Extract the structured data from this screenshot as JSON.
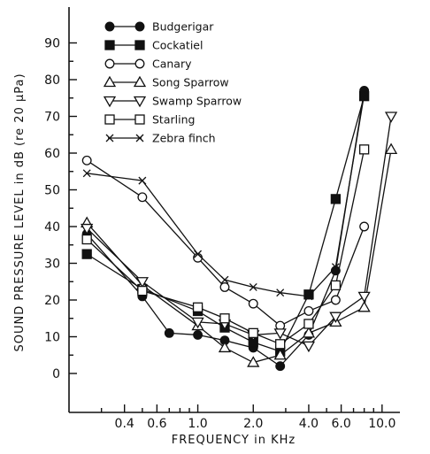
{
  "chart_data": {
    "type": "line",
    "x_scale": "log",
    "xlabel": "FREQUENCY in KHz",
    "ylabel": "SOUND PRESSURE LEVEL in dB (re 20 μPa)",
    "xlim": [
      0.2,
      12.5
    ],
    "ylim": [
      -10,
      100
    ],
    "x_ticks": [
      {
        "value": 0.4,
        "label": "0.4"
      },
      {
        "value": 0.6,
        "label": "0.6"
      },
      {
        "value": 1.0,
        "label": "1.0"
      },
      {
        "value": 2.0,
        "label": "2.0"
      },
      {
        "value": 4.0,
        "label": "4.0"
      },
      {
        "value": 6.0,
        "label": "6.0"
      },
      {
        "value": 10.0,
        "label": "10.0"
      }
    ],
    "y_ticks": [
      0,
      10,
      20,
      30,
      40,
      50,
      60,
      70,
      80,
      90
    ],
    "grid": false,
    "legend_position": "top-left",
    "series": [
      {
        "name": "Budgerigar",
        "marker": "filled-circle",
        "x": [
          0.25,
          0.5,
          0.7,
          1.0,
          1.4,
          2.0,
          2.8,
          4.0,
          5.6,
          8.0
        ],
        "y": [
          38,
          21,
          11,
          10.5,
          9,
          7,
          2,
          10.5,
          28,
          77
        ]
      },
      {
        "name": "Cockatiel",
        "marker": "filled-square",
        "x": [
          0.25,
          0.5,
          1.0,
          1.4,
          2.0,
          2.8,
          4.0,
          5.6,
          8.0
        ],
        "y": [
          32.5,
          23,
          17,
          12.5,
          8.5,
          6,
          21.5,
          47.5,
          75.5
        ]
      },
      {
        "name": "Canary",
        "marker": "open-circle",
        "x": [
          0.25,
          0.5,
          1.0,
          1.4,
          2.0,
          2.8,
          4.0,
          5.6,
          8.0
        ],
        "y": [
          58,
          48,
          31.5,
          23.5,
          19,
          13,
          17,
          20,
          40
        ]
      },
      {
        "name": "Song Sparrow",
        "marker": "triangle-up",
        "x": [
          0.25,
          0.5,
          1.0,
          1.4,
          2.0,
          2.8,
          4.0,
          5.6,
          8.0,
          11.2
        ],
        "y": [
          41,
          24,
          13,
          7,
          3,
          5,
          11,
          14,
          18,
          61
        ]
      },
      {
        "name": "Swamp Sparrow",
        "marker": "triangle-down",
        "x": [
          0.25,
          0.5,
          1.0,
          1.4,
          2.0,
          2.8,
          4.0,
          5.6,
          8.0,
          11.2
        ],
        "y": [
          39.5,
          25,
          14,
          13.5,
          10.5,
          11,
          7.5,
          15.5,
          21,
          70
        ]
      },
      {
        "name": "Starling",
        "marker": "open-square",
        "x": [
          0.25,
          0.5,
          1.0,
          1.4,
          2.0,
          2.8,
          4.0,
          5.6,
          8.0
        ],
        "y": [
          36.5,
          22.5,
          18,
          15,
          11,
          8,
          13.5,
          24,
          61
        ]
      },
      {
        "name": "Zebra finch",
        "marker": "x",
        "x": [
          0.25,
          0.5,
          1.0,
          1.4,
          2.0,
          2.8,
          4.0,
          5.6,
          8.0
        ],
        "y": [
          54.5,
          52.5,
          32.5,
          25.5,
          23.5,
          22,
          21,
          29,
          76
        ]
      }
    ]
  }
}
